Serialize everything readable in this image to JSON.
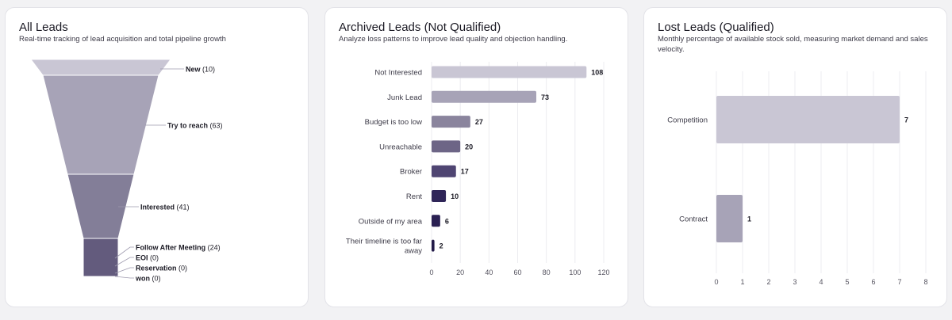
{
  "cards": [
    {
      "title": "All Leads",
      "subtitle": "Real-time tracking of lead acquisition and total pipeline growth"
    },
    {
      "title": "Archived Leads (Not Qualified)",
      "subtitle": "Analyze loss patterns to improve lead quality and objection handling."
    },
    {
      "title": "Lost Leads (Qualified)",
      "subtitle": "Monthly percentage of available stock sold, measuring market demand and sales velocity."
    }
  ],
  "chart_data": [
    {
      "type": "funnel",
      "stages": [
        {
          "label": "New",
          "value": 10,
          "color": "#c9c6d4"
        },
        {
          "label": "Try to reach",
          "value": 63,
          "color": "#a7a3b7"
        },
        {
          "label": "Interested",
          "value": 41,
          "color": "#837e98"
        },
        {
          "label": "Follow After Meeting",
          "value": 24,
          "color": "#635b7d"
        },
        {
          "label": "EOI",
          "value": 0,
          "color": "#4e4470"
        },
        {
          "label": "Reservation",
          "value": 0,
          "color": "#3e3462"
        },
        {
          "label": "won",
          "value": 0,
          "color": "#2d2456"
        }
      ]
    },
    {
      "type": "bar",
      "orientation": "horizontal",
      "categories": [
        "Not Interested",
        "Junk Lead",
        "Budget is too low",
        "Unreachable",
        "Broker",
        "Rent",
        "Outside of my area",
        "Their timeline is too far away"
      ],
      "category_lines": [
        [
          "Not Interested"
        ],
        [
          "Junk Lead"
        ],
        [
          "Budget is too low"
        ],
        [
          "Unreachable"
        ],
        [
          "Broker"
        ],
        [
          "Rent"
        ],
        [
          "Outside of my area"
        ],
        [
          "Their timeline is too far",
          "away"
        ]
      ],
      "values": [
        108,
        73,
        27,
        20,
        17,
        10,
        6,
        2
      ],
      "colors": [
        "#c9c6d4",
        "#a7a3b7",
        "#8a849d",
        "#6d6586",
        "#4f4572",
        "#2f2558",
        "#2a2052",
        "#221a48"
      ],
      "xlim": [
        0,
        120
      ],
      "xticks": [
        0,
        20,
        40,
        60,
        80,
        100,
        120
      ],
      "grid": true
    },
    {
      "type": "bar",
      "orientation": "horizontal",
      "categories": [
        "Competition",
        "Contract"
      ],
      "category_lines": [
        [
          "Competition"
        ],
        [
          "Contract"
        ]
      ],
      "values": [
        7,
        1
      ],
      "colors": [
        "#c9c6d4",
        "#a7a3b7"
      ],
      "xlim": [
        0,
        8
      ],
      "xticks": [
        0,
        1,
        2,
        3,
        4,
        5,
        6,
        7,
        8
      ],
      "grid": true
    }
  ]
}
